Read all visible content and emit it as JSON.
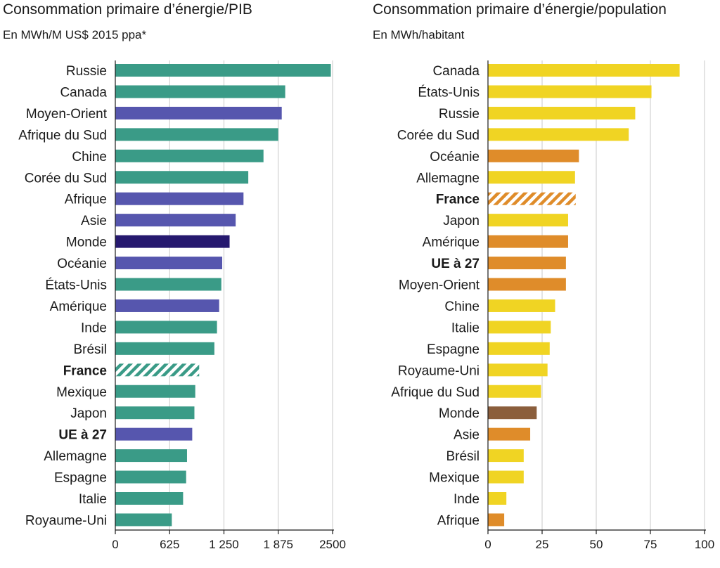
{
  "chart_data": [
    {
      "type": "bar",
      "orientation": "horizontal",
      "title": "Consommation primaire d’énergie/PIB",
      "subtitle": "En MWh/M US$ 2015 ppa*",
      "xlim": [
        0,
        2500
      ],
      "tick_values": [
        0,
        625,
        1250,
        1875,
        2500
      ],
      "tick_labels": [
        "0",
        "625",
        "1 250",
        "1 875",
        "2500"
      ],
      "grid": true,
      "colors": {
        "country": "#3a9b87",
        "region": "#5656ae",
        "world": "#26196f",
        "france": "#3a9b87"
      },
      "bars": [
        {
          "label": "Russie",
          "value": 2480,
          "group": "country"
        },
        {
          "label": "Canada",
          "value": 1955,
          "group": "country"
        },
        {
          "label": "Moyen-Orient",
          "value": 1915,
          "group": "region"
        },
        {
          "label": "Afrique du Sud",
          "value": 1875,
          "group": "country"
        },
        {
          "label": "Chine",
          "value": 1705,
          "group": "country"
        },
        {
          "label": "Corée du Sud",
          "value": 1530,
          "group": "country"
        },
        {
          "label": "Afrique",
          "value": 1475,
          "group": "region"
        },
        {
          "label": "Asie",
          "value": 1385,
          "group": "region"
        },
        {
          "label": "Monde",
          "value": 1315,
          "group": "world"
        },
        {
          "label": "Océanie",
          "value": 1230,
          "group": "region"
        },
        {
          "label": "États-Unis",
          "value": 1220,
          "group": "country"
        },
        {
          "label": "Amérique",
          "value": 1195,
          "group": "region"
        },
        {
          "label": "Inde",
          "value": 1170,
          "group": "country"
        },
        {
          "label": "Brésil",
          "value": 1140,
          "group": "country"
        },
        {
          "label": "France",
          "value": 965,
          "group": "france",
          "bold": true
        },
        {
          "label": "Mexique",
          "value": 920,
          "group": "country"
        },
        {
          "label": "Japon",
          "value": 910,
          "group": "country"
        },
        {
          "label": "UE à 27",
          "value": 885,
          "group": "region",
          "bold": true
        },
        {
          "label": "Allemagne",
          "value": 825,
          "group": "country"
        },
        {
          "label": "Espagne",
          "value": 815,
          "group": "country"
        },
        {
          "label": "Italie",
          "value": 780,
          "group": "country"
        },
        {
          "label": "Royaume-Uni",
          "value": 650,
          "group": "country"
        }
      ]
    },
    {
      "type": "bar",
      "orientation": "horizontal",
      "title": "Consommation primaire d’énergie/population",
      "subtitle": "En MWh/habitant",
      "xlim": [
        0,
        100
      ],
      "tick_values": [
        0,
        25,
        50,
        75,
        100
      ],
      "tick_labels": [
        "0",
        "25",
        "50",
        "75",
        "100"
      ],
      "grid": true,
      "colors": {
        "country": "#f0d423",
        "region": "#df8c2a",
        "world": "#8b5e3c",
        "france": "#df8c2a"
      },
      "bars": [
        {
          "label": "Canada",
          "value": 88.5,
          "group": "country"
        },
        {
          "label": "États-Unis",
          "value": 75.5,
          "group": "country"
        },
        {
          "label": "Russie",
          "value": 68,
          "group": "country"
        },
        {
          "label": "Corée du Sud",
          "value": 65,
          "group": "country"
        },
        {
          "label": "Océanie",
          "value": 42,
          "group": "region"
        },
        {
          "label": "Allemagne",
          "value": 40.2,
          "group": "country"
        },
        {
          "label": "France",
          "value": 40.5,
          "group": "france",
          "bold": true
        },
        {
          "label": "Japon",
          "value": 37,
          "group": "country"
        },
        {
          "label": "Amérique",
          "value": 37,
          "group": "region"
        },
        {
          "label": "UE à 27",
          "value": 36,
          "group": "region",
          "bold": true
        },
        {
          "label": "Moyen-Orient",
          "value": 36,
          "group": "region"
        },
        {
          "label": "Chine",
          "value": 31,
          "group": "country"
        },
        {
          "label": "Italie",
          "value": 29,
          "group": "country"
        },
        {
          "label": "Espagne",
          "value": 28.5,
          "group": "country"
        },
        {
          "label": "Royaume-Uni",
          "value": 27.5,
          "group": "country"
        },
        {
          "label": "Afrique du Sud",
          "value": 24.5,
          "group": "country"
        },
        {
          "label": "Monde",
          "value": 22.5,
          "group": "world"
        },
        {
          "label": "Asie",
          "value": 19.5,
          "group": "region"
        },
        {
          "label": "Brésil",
          "value": 16.5,
          "group": "country"
        },
        {
          "label": "Mexique",
          "value": 16.5,
          "group": "country"
        },
        {
          "label": "Inde",
          "value": 8.5,
          "group": "country"
        },
        {
          "label": "Afrique",
          "value": 7.5,
          "group": "region"
        }
      ]
    }
  ]
}
